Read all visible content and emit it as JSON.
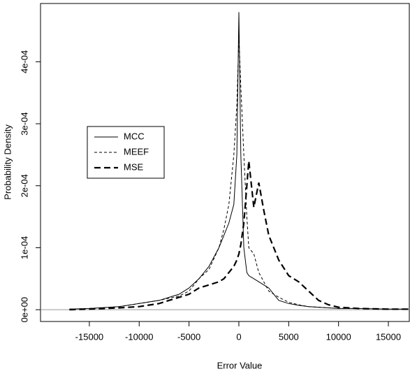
{
  "chart_data": {
    "type": "line",
    "x_label": "Error Value",
    "y_label": "Probability Density",
    "xlim": [
      -19900,
      17100
    ],
    "ylim": [
      -1.9e-05,
      0.000494
    ],
    "xticks": [
      -15000,
      -10000,
      -5000,
      0,
      5000,
      10000,
      15000
    ],
    "yticks": [
      {
        "value": 0,
        "label": "0e+00"
      },
      {
        "value": 0.0001,
        "label": "1e-04"
      },
      {
        "value": 0.0002,
        "label": "2e-04"
      },
      {
        "value": 0.0003,
        "label": "3e-04"
      },
      {
        "value": 0.0004,
        "label": "4e-04"
      }
    ],
    "zero_line": true,
    "legend_position": "left",
    "x": [
      -17000,
      -15000,
      -12000,
      -10000,
      -8000,
      -6000,
      -5000,
      -4000,
      -3000,
      -2000,
      -1500,
      -1000,
      -500,
      -200,
      0,
      200,
      500,
      800,
      1000,
      1500,
      2000,
      2500,
      3000,
      4000,
      5000,
      6000,
      7000,
      8000,
      9000,
      10000,
      12000,
      15000,
      17000
    ],
    "series": [
      {
        "name": "MCC",
        "color": "#000000",
        "linestyle": "solid",
        "values": [
          1e-06,
          2e-06,
          5e-06,
          1e-05,
          1.5e-05,
          2.5e-05,
          3.5e-05,
          5e-05,
          7e-05,
          0.0001,
          0.00012,
          0.00014,
          0.00017,
          0.00025,
          0.00048,
          0.00025,
          0.0001,
          6e-05,
          5.5e-05,
          5e-05,
          4.5e-05,
          4e-05,
          3.5e-05,
          1.5e-05,
          1e-05,
          7e-06,
          5e-06,
          4e-06,
          3e-06,
          2e-06,
          2e-06,
          1e-06,
          1e-06
        ]
      },
      {
        "name": "MEEF",
        "color": "#000000",
        "linestyle": "dashed",
        "values": [
          1e-06,
          2e-06,
          5e-06,
          1e-05,
          1.5e-05,
          2.2e-05,
          3e-05,
          5e-05,
          6.5e-05,
          0.0001,
          0.00013,
          0.00017,
          0.00025,
          0.00033,
          0.00044,
          0.00036,
          0.00025,
          0.00015,
          0.0001,
          9e-05,
          6e-05,
          4.5e-05,
          3e-05,
          2e-05,
          1.2e-05,
          8e-06,
          5e-06,
          4e-06,
          3e-06,
          2e-06,
          2e-06,
          1e-06,
          1e-06
        ]
      },
      {
        "name": "MSE",
        "color": "#000000",
        "linestyle": "longdash",
        "values": [
          0,
          1e-06,
          3e-06,
          5e-06,
          1e-05,
          2e-05,
          2.5e-05,
          3.5e-05,
          4e-05,
          4.5e-05,
          5e-05,
          6e-05,
          7e-05,
          8e-05,
          9e-05,
          0.000105,
          0.00014,
          0.0002,
          0.00024,
          0.000165,
          0.000205,
          0.00016,
          0.00012,
          8e-05,
          5.5e-05,
          4.5e-05,
          3e-05,
          1.5e-05,
          8e-06,
          4e-06,
          2e-06,
          1e-06,
          1e-06
        ]
      }
    ]
  }
}
